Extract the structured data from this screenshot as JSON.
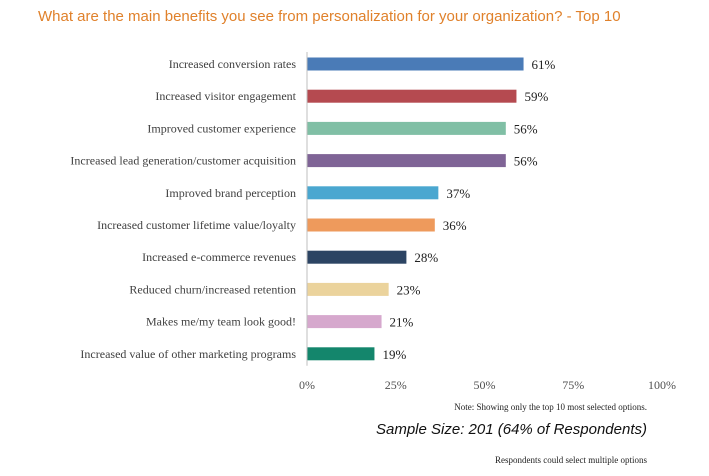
{
  "chart_data": {
    "type": "bar",
    "orientation": "horizontal",
    "title": "What are the main benefits you see from personalization for your organization? - Top 10",
    "categories": [
      "Increased conversion rates",
      "Increased visitor engagement",
      "Improved customer experience",
      "Increased lead generation/customer acquisition",
      "Improved brand perception",
      "Increased customer lifetime value/loyalty",
      "Increased e-commerce revenues",
      "Reduced churn/increased retention",
      "Makes me/my team look good!",
      "Increased value of other marketing programs"
    ],
    "values": [
      61,
      59,
      56,
      56,
      37,
      36,
      28,
      23,
      21,
      19
    ],
    "value_labels": [
      "61%",
      "59%",
      "56%",
      "56%",
      "37%",
      "36%",
      "28%",
      "23%",
      "21%",
      "19%"
    ],
    "colors": [
      "#4a7bb7",
      "#b54a50",
      "#80bfa5",
      "#7f6496",
      "#4aa7d0",
      "#ee9a5c",
      "#2c4463",
      "#ebd39c",
      "#d6a8cd",
      "#14866c"
    ],
    "xlim": [
      0,
      100
    ],
    "xticks": [
      0,
      25,
      50,
      75,
      100
    ],
    "xtick_labels": [
      "0%",
      "25%",
      "50%",
      "75%",
      "100%"
    ],
    "grid": false,
    "legend": "none"
  },
  "notes": {
    "top_options_note": "Note: Showing only the top 10 most selected options.",
    "sample_size": "Sample Size: 201 (64% of Respondents)",
    "multiple_options_note": "Respondents could select multiple options"
  }
}
